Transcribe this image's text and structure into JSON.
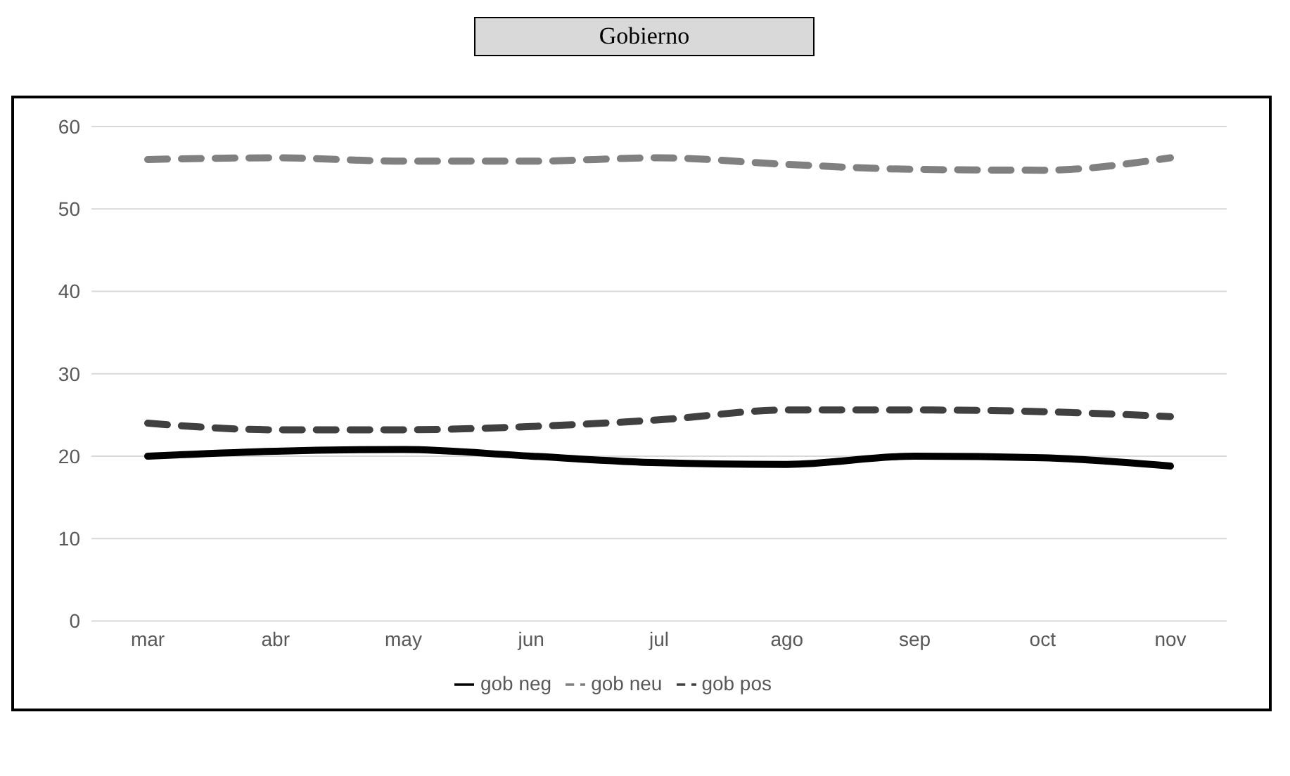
{
  "chart_data": {
    "type": "line",
    "title": "Gobierno",
    "categories": [
      "mar",
      "abr",
      "may",
      "jun",
      "jul",
      "ago",
      "sep",
      "oct",
      "nov"
    ],
    "series": [
      {
        "name": "gob neg",
        "color": "#000000",
        "line_style": "solid",
        "values": [
          20,
          20.6,
          20.8,
          20,
          19.2,
          19,
          20,
          19.8,
          18.8
        ]
      },
      {
        "name": "gob neu",
        "color": "#808080",
        "line_style": "dashed",
        "values": [
          56,
          56.2,
          55.8,
          55.8,
          56.2,
          55.4,
          54.8,
          54.7,
          56.2
        ]
      },
      {
        "name": "gob pos",
        "color": "#404040",
        "line_style": "dashed",
        "values": [
          24,
          23.2,
          23.2,
          23.6,
          24.4,
          25.6,
          25.6,
          25.4,
          24.8
        ]
      }
    ],
    "ylim": [
      0,
      60
    ],
    "yticks": [
      0,
      10,
      20,
      30,
      40,
      50,
      60
    ],
    "grid": "y",
    "legend": "bottom",
    "marker": "none"
  }
}
